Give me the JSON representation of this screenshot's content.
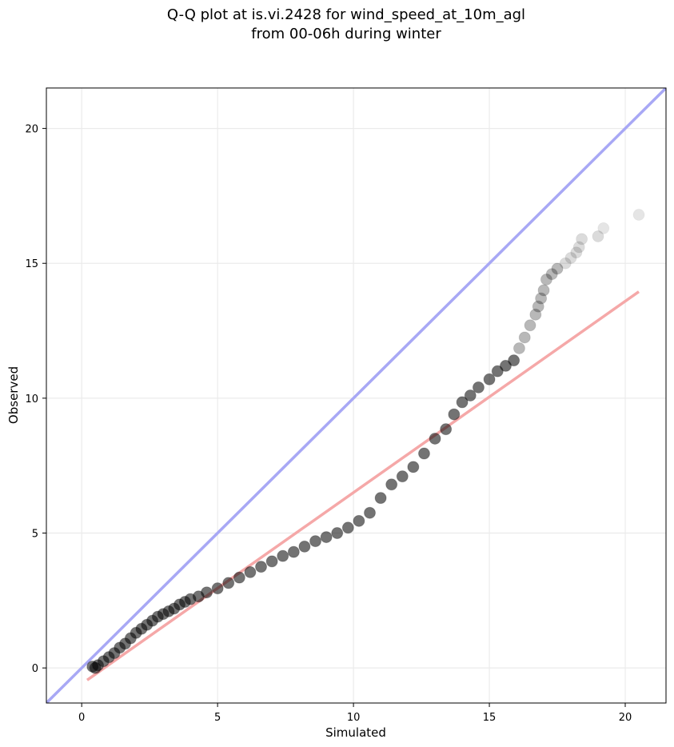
{
  "chart_data": {
    "type": "scatter",
    "title": [
      "Q-Q plot at is.vi.2428 for wind_speed_at_10m_agl",
      "from 00-06h during winter"
    ],
    "xlabel": "Simulated",
    "ylabel": "Observed",
    "xlim": [
      -1.3,
      21.5
    ],
    "ylim": [
      -1.3,
      21.5
    ],
    "xticks": [
      0,
      5,
      10,
      15,
      20
    ],
    "yticks": [
      0,
      5,
      10,
      15,
      20
    ],
    "xtick_labels": [
      "0",
      "5",
      "10",
      "15",
      "20"
    ],
    "ytick_labels": [
      "0",
      "5",
      "10",
      "15",
      "20"
    ],
    "grid": true,
    "colors": {
      "points": "#000000",
      "identity_line": "#a8a8f5",
      "fit_line": "#f5a8a8",
      "grid": "#ebebeb"
    },
    "series": [
      {
        "x": [
          0.4,
          0.5,
          0.6,
          0.8,
          1.0,
          1.2,
          1.4,
          1.6,
          1.8,
          2.0,
          2.2,
          2.4,
          2.6,
          2.8,
          3.0,
          3.2,
          3.4,
          3.6,
          3.8,
          4.0,
          4.3,
          4.6,
          5.0,
          5.4,
          5.8,
          6.2,
          6.6,
          7.0,
          7.4,
          7.8,
          8.2,
          8.6,
          9.0,
          9.4,
          9.8,
          10.2,
          10.6,
          11.0,
          11.4,
          11.8,
          12.2,
          12.6,
          13.0,
          13.4,
          13.7,
          14.0,
          14.3,
          14.6,
          15.0,
          15.3,
          15.6,
          15.9,
          16.1,
          16.3,
          16.5,
          16.7,
          16.8,
          16.9,
          17.0,
          17.1,
          17.3,
          17.5,
          17.8,
          18.0,
          18.2,
          18.3,
          18.4,
          19.0,
          19.2,
          20.5
        ],
        "y": [
          0.05,
          0.0,
          0.1,
          0.25,
          0.4,
          0.55,
          0.75,
          0.9,
          1.1,
          1.3,
          1.45,
          1.6,
          1.75,
          1.9,
          2.0,
          2.1,
          2.2,
          2.35,
          2.45,
          2.55,
          2.65,
          2.8,
          2.95,
          3.15,
          3.35,
          3.55,
          3.75,
          3.95,
          4.15,
          4.3,
          4.5,
          4.7,
          4.85,
          5.0,
          5.2,
          5.45,
          5.75,
          6.3,
          6.8,
          7.1,
          7.45,
          7.95,
          8.5,
          8.85,
          9.4,
          9.85,
          10.1,
          10.4,
          10.7,
          11.0,
          11.2,
          11.4,
          11.85,
          12.25,
          12.7,
          13.1,
          13.4,
          13.7,
          14.0,
          14.4,
          14.6,
          14.8,
          15.0,
          15.2,
          15.4,
          15.6,
          15.9,
          16.0,
          16.3,
          16.8
        ]
      }
    ],
    "reference_lines": [
      {
        "type": "identity",
        "from": [
          -1.3,
          -1.3
        ],
        "to": [
          21.5,
          21.5
        ]
      },
      {
        "type": "fit",
        "from": [
          0.2,
          -0.45
        ],
        "to": [
          20.5,
          13.95
        ]
      }
    ]
  }
}
